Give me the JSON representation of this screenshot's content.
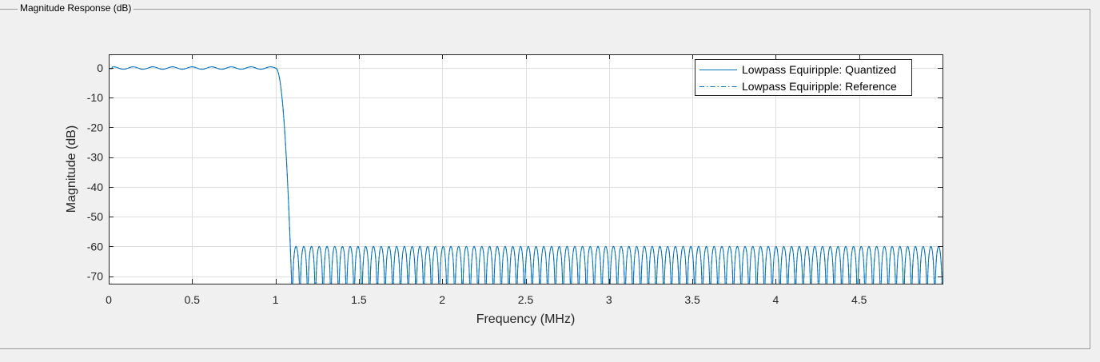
{
  "panel": {
    "title": "Magnitude Response (dB)"
  },
  "chart_data": {
    "type": "line",
    "title": "",
    "xlabel": "Frequency (MHz)",
    "ylabel": "Magnitude (dB)",
    "xlim": [
      0,
      5
    ],
    "ylim": [
      -72.5,
      4.5
    ],
    "xticks": [
      0,
      0.5,
      1,
      1.5,
      2,
      2.5,
      3,
      3.5,
      4,
      4.5
    ],
    "xtick_labels": [
      "0",
      "0.5",
      "1",
      "1.5",
      "2",
      "2.5",
      "3",
      "3.5",
      "4",
      "4.5"
    ],
    "yticks": [
      0,
      -10,
      -20,
      -30,
      -40,
      -50,
      -60,
      -70
    ],
    "ytick_labels": [
      "0",
      "-10",
      "-20",
      "-30",
      "-40",
      "-50",
      "-60",
      "-70"
    ],
    "grid": true,
    "legend_position": "top-right",
    "filter": {
      "passband_edge": 1.0,
      "stopband_edge": 1.1,
      "passband_ripple_db": 0.5,
      "stopband_level_db": -60,
      "stopband_lobes": 84
    },
    "series": [
      {
        "name": "Lowpass Equiripple: Quantized",
        "style": "solid",
        "color": "#0072bd"
      },
      {
        "name": "Lowpass Equiripple: Reference",
        "style": "dashdot",
        "color": "#0072bd"
      }
    ]
  }
}
